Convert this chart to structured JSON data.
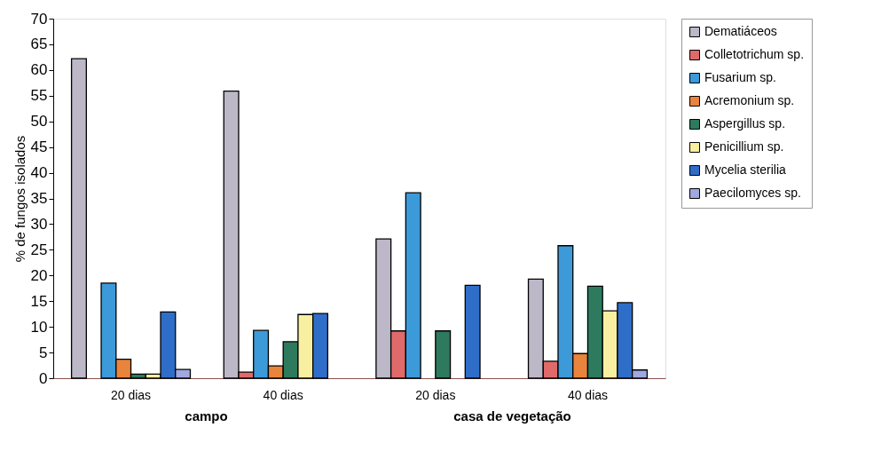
{
  "chart_data": {
    "type": "bar",
    "ylabel": "% de fungos isolados",
    "categories": [
      "20 dias",
      "40 dias",
      "20 dias",
      "40 dias"
    ],
    "series": [
      {
        "name": "Dematiáceos",
        "color": "#bcb8c8",
        "values": [
          62.2,
          55.9,
          27.1,
          19.3
        ]
      },
      {
        "name": "Colletotrichum sp.",
        "color": "#e06a6a",
        "values": [
          0,
          1.2,
          9.2,
          3.3
        ]
      },
      {
        "name": "Fusarium sp.",
        "color": "#3c9ad8",
        "values": [
          18.5,
          9.3,
          36.1,
          25.8
        ]
      },
      {
        "name": "Acremonium sp.",
        "color": "#e8843c",
        "values": [
          3.7,
          2.4,
          0,
          4.8
        ]
      },
      {
        "name": "Aspergillus sp.",
        "color": "#2e7a5e",
        "values": [
          0.8,
          7.1,
          9.2,
          17.9
        ]
      },
      {
        "name": "Penicillium sp.",
        "color": "#f8f0a0",
        "values": [
          0.8,
          12.4,
          0,
          13.1
        ]
      },
      {
        "name": "Mycelia sterilia",
        "color": "#2f6ec8",
        "values": [
          12.9,
          12.6,
          18.1,
          14.7
        ]
      },
      {
        "name": "Paecilomyces sp.",
        "color": "#a0a8e0",
        "values": [
          1.7,
          0,
          0,
          1.6
        ]
      }
    ],
    "ylim": [
      0,
      70
    ],
    "yticks": [
      0,
      5,
      10,
      15,
      20,
      25,
      30,
      35,
      40,
      45,
      50,
      55,
      60,
      65,
      70
    ],
    "grid": false,
    "legend": "top right",
    "annotations": [
      "campo",
      "casa de vegetação"
    ]
  }
}
